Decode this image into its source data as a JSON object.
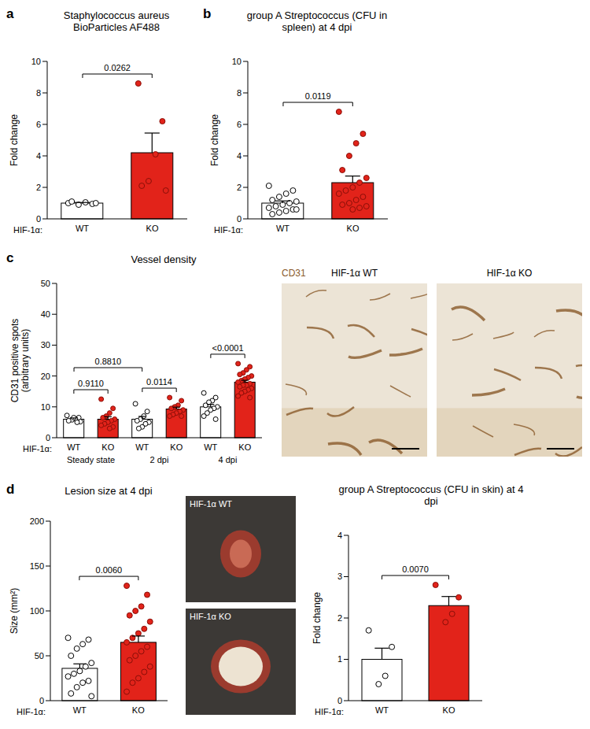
{
  "chart_data": [
    {
      "panel": "a",
      "type": "bar",
      "title": "Staphylococcus aureus BioParticles AF488",
      "y_label": "Fold change",
      "x_label": "HIF-1α:",
      "categories": [
        "WT",
        "KO"
      ],
      "values": [
        1.0,
        4.2
      ],
      "errors": [
        0.04,
        1.25
      ],
      "colors": [
        "#ffffff",
        "#e2231a"
      ],
      "points": [
        [
          1.0,
          0.95,
          1.05,
          0.9,
          1.1,
          1.0
        ],
        [
          8.6,
          6.2,
          4.1,
          2.4,
          2.1,
          1.8
        ]
      ],
      "ylim": [
        0,
        10
      ],
      "yticks": [
        0,
        2,
        4,
        6,
        8,
        10
      ],
      "annotations": [
        {
          "text": "0.0262",
          "from": 0,
          "to": 1
        }
      ]
    },
    {
      "panel": "b",
      "type": "bar",
      "title": "group A Streptococcus (CFU in spleen) at 4 dpi",
      "y_label": "Fold change",
      "x_label": "HIF-1α:",
      "categories": [
        "WT",
        "KO"
      ],
      "values": [
        1.0,
        2.3
      ],
      "errors": [
        0.14,
        0.42
      ],
      "colors": [
        "#ffffff",
        "#e2231a"
      ],
      "points": [
        [
          2.1,
          1.8,
          1.6,
          1.4,
          1.2,
          1.1,
          1.0,
          0.9,
          0.8,
          0.7,
          0.6,
          0.5,
          0.4,
          0.3,
          0.6
        ],
        [
          6.8,
          5.4,
          4.8,
          4.0,
          3.1,
          2.6,
          2.3,
          2.0,
          1.8,
          1.6,
          1.4,
          1.2,
          1.0,
          0.9,
          0.8,
          0.7,
          0.6
        ]
      ],
      "ylim": [
        0,
        10
      ],
      "yticks": [
        0,
        2,
        4,
        6,
        8,
        10
      ],
      "annotations": [
        {
          "text": "0.0119",
          "from": 0,
          "to": 1
        }
      ]
    },
    {
      "panel": "c",
      "type": "bar",
      "title": "Vessel density",
      "y_label": [
        "CD31 positive spots",
        "(arbitrary units)"
      ],
      "x_label": "HIF-1α:",
      "categories": [
        "WT",
        "KO",
        "WT",
        "KO",
        "WT",
        "KO"
      ],
      "groups": [
        "Steady state",
        "2 dpi",
        "4 dpi"
      ],
      "values": [
        6.0,
        6.0,
        6.0,
        9.3,
        10.0,
        18.0
      ],
      "errors": [
        0.4,
        0.8,
        0.9,
        0.6,
        0.8,
        0.6
      ],
      "colors": [
        "#ffffff",
        "#e2231a",
        "#ffffff",
        "#e2231a",
        "#ffffff",
        "#e2231a"
      ],
      "points": [
        [
          7.2,
          6.5,
          6.1,
          5.8,
          5.5,
          5.2,
          5.0,
          6.5
        ],
        [
          12.5,
          9.5,
          8.0,
          7.0,
          6.5,
          6.0,
          5.5,
          5.0,
          4.5,
          4.0,
          3.5,
          3.0
        ],
        [
          11.0,
          8.5,
          7.0,
          6.0,
          5.5,
          5.0,
          4.5,
          3.5,
          3.0
        ],
        [
          13.0,
          12.0,
          10.5,
          10.0,
          9.5,
          9.0,
          8.5,
          8.0,
          7.5,
          7.0,
          7.0
        ],
        [
          14.5,
          13.0,
          12.0,
          11.5,
          10.5,
          10.0,
          9.5,
          9.0,
          8.0,
          7.0,
          6.0
        ],
        [
          24.0,
          23.0,
          22.0,
          21.0,
          20.5,
          20.0,
          19.5,
          19.0,
          18.5,
          18.0,
          17.5,
          17.0,
          17.0,
          16.5,
          16.0,
          15.5,
          15.0,
          14.5,
          13.5,
          13.0
        ]
      ],
      "ylim": [
        0,
        50
      ],
      "yticks": [
        0,
        10,
        20,
        30,
        40,
        50
      ],
      "annotations": [
        {
          "text": "0.9110",
          "from": 0,
          "to": 1
        },
        {
          "text": "0.8810",
          "from": 0,
          "to": 2
        },
        {
          "text": "0.0114",
          "from": 2,
          "to": 3
        },
        {
          "text": "<0.0001",
          "from": 4,
          "to": 5
        }
      ]
    },
    {
      "panel": "d",
      "type": "bar",
      "title": "Lesion size at 4 dpi",
      "y_label": "Size (mm²)",
      "x_label": "HIF-1α:",
      "categories": [
        "WT",
        "KO"
      ],
      "values": [
        36,
        65
      ],
      "errors": [
        5,
        7
      ],
      "colors": [
        "#ffffff",
        "#e2231a"
      ],
      "points": [
        [
          70,
          68,
          63,
          58,
          50,
          42,
          38,
          33,
          30,
          27,
          22,
          20,
          15,
          8,
          5
        ],
        [
          128,
          118,
          105,
          100,
          95,
          88,
          80,
          75,
          70,
          65,
          60,
          55,
          50,
          45,
          38,
          32,
          25,
          20,
          10
        ]
      ],
      "ylim": [
        0,
        200
      ],
      "yticks": [
        0,
        50,
        100,
        150,
        200
      ],
      "annotations": [
        {
          "text": "0.0060",
          "from": 0,
          "to": 1
        }
      ]
    },
    {
      "panel": "d",
      "type": "bar",
      "title": "group A Streptococcus (CFU in skin) at 4 dpi",
      "y_label": "Fold change",
      "x_label": "HIF-1α:",
      "categories": [
        "WT",
        "KO"
      ],
      "values": [
        1.0,
        2.3
      ],
      "errors": [
        0.27,
        0.22
      ],
      "colors": [
        "#ffffff",
        "#e2231a"
      ],
      "points": [
        [
          1.7,
          1.3,
          0.6,
          0.4
        ],
        [
          2.8,
          2.5,
          2.1,
          1.9
        ]
      ],
      "ylim": [
        0,
        4
      ],
      "yticks": [
        0,
        1,
        2,
        3,
        4
      ],
      "annotations": [
        {
          "text": "0.0070",
          "from": 0,
          "to": 1
        }
      ]
    }
  ],
  "images": [
    {
      "panel": "c",
      "stain": "CD31",
      "labels": [
        "HIF-1α WT",
        "HIF-1α KO"
      ]
    },
    {
      "panel": "d",
      "labels": [
        "HIF-1α WT",
        "HIF-1α KO"
      ]
    }
  ]
}
